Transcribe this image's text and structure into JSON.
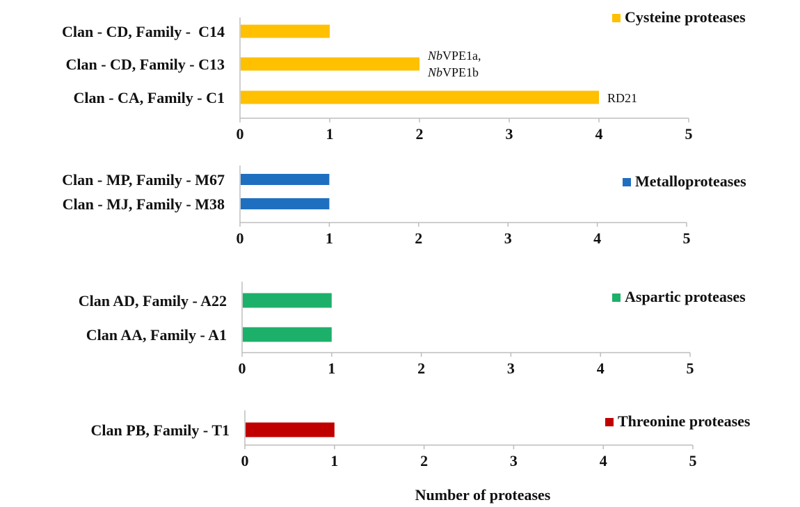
{
  "chart_data": [
    {
      "type": "bar",
      "orientation": "horizontal",
      "categories": [
        "Clan - CA, Family - C1",
        "Clan - CD, Family - C13",
        "Clan - CD, Family -  C14"
      ],
      "values": [
        4,
        2,
        1
      ],
      "legend": "Cysteine proteases",
      "color": "#FFC000",
      "xlim": [
        0,
        5
      ],
      "ticks": [
        0,
        1,
        2,
        3,
        4,
        5
      ],
      "annotations": [
        {
          "category": "Clan - CD, Family - C13",
          "lines": [
            {
              "italic": "Nb",
              "text": "VPE1a,"
            },
            {
              "italic": "Nb",
              "text": "VPE1b"
            }
          ]
        },
        {
          "category": "Clan - CA, Family - C1",
          "lines": [
            {
              "italic": "",
              "text": "RD21"
            }
          ]
        }
      ]
    },
    {
      "type": "bar",
      "orientation": "horizontal",
      "categories": [
        "Clan - MJ, Family - M38",
        "Clan - MP, Family - M67"
      ],
      "values": [
        1,
        1
      ],
      "legend": "Metalloproteases",
      "color": "#1F6FC0",
      "xlim": [
        0,
        5
      ],
      "ticks": [
        0,
        1,
        2,
        3,
        4,
        5
      ]
    },
    {
      "type": "bar",
      "orientation": "horizontal",
      "categories": [
        "Clan AA, Family - A1",
        "Clan AD, Family - A22"
      ],
      "values": [
        1,
        1
      ],
      "legend": "Aspartic proteases",
      "color": "#1DB06A",
      "xlim": [
        0,
        5
      ],
      "ticks": [
        0,
        1,
        2,
        3,
        4,
        5
      ]
    },
    {
      "type": "bar",
      "orientation": "horizontal",
      "categories": [
        "Clan PB, Family - T1"
      ],
      "values": [
        1
      ],
      "legend": "Threonine proteases",
      "color": "#C00000",
      "xlim": [
        0,
        5
      ],
      "ticks": [
        0,
        1,
        2,
        3,
        4,
        5
      ],
      "xlabel": "Number of proteases"
    }
  ]
}
